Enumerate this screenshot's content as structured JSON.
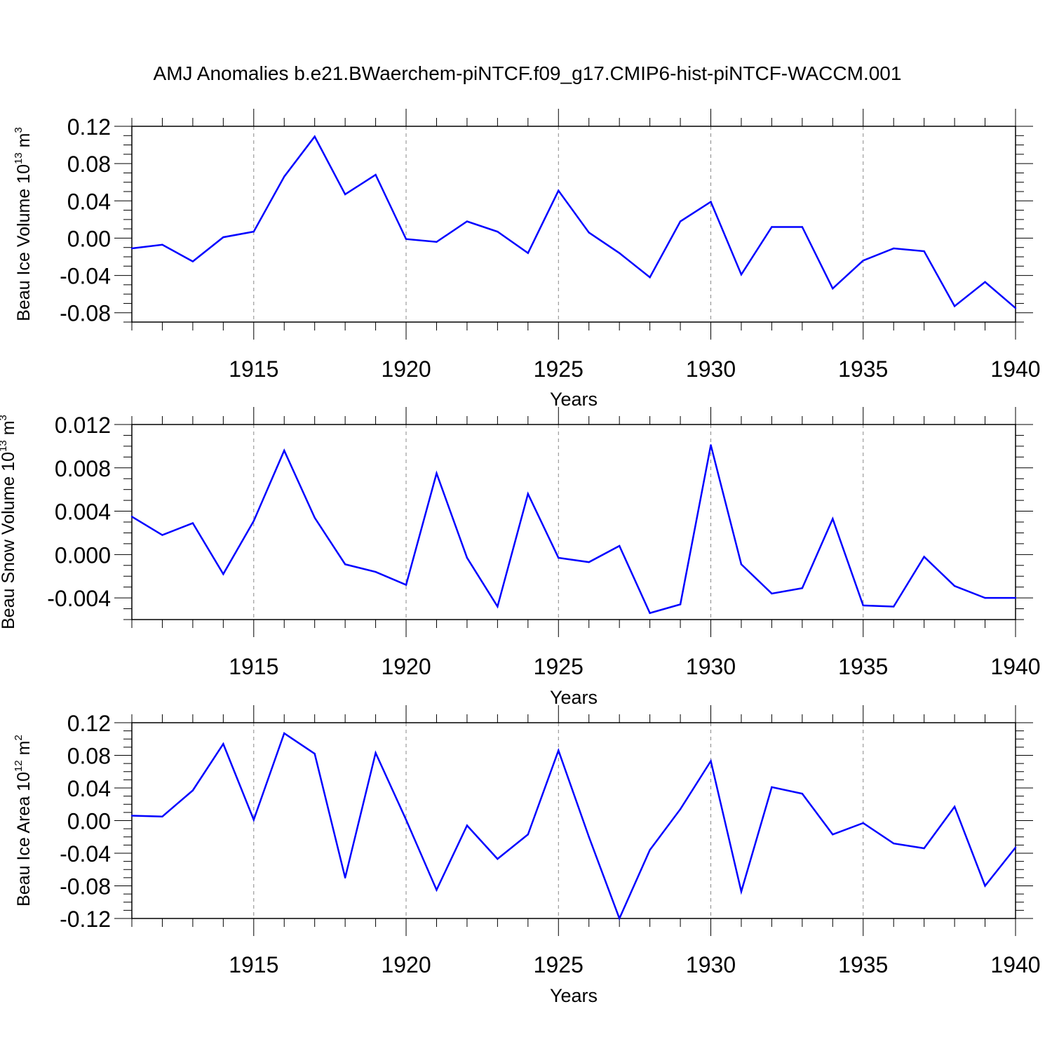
{
  "title": "AMJ Anomalies b.e21.BWaerchem-piNTCF.f09_g17.CMIP6-hist-piNTCF-WACCM.001",
  "colors": {
    "series": "#0000ff",
    "axis": "#000000",
    "grid": "#888888",
    "background": "#ffffff"
  },
  "chart_data": [
    {
      "type": "line",
      "ylabel_main": "Beau Ice Volume 10",
      "ylabel_exp": "13",
      "ylabel_unit": " m",
      "ylabel_unit_exp": "3",
      "xlabel": "Years",
      "xlim": [
        1911,
        1940
      ],
      "ylim": [
        -0.09,
        0.12
      ],
      "yticks": [
        -0.08,
        -0.04,
        0.0,
        0.04,
        0.08,
        0.12
      ],
      "ytick_labels": [
        "-0.08",
        "-0.04",
        "0.00",
        "0.04",
        "0.08",
        "0.12"
      ],
      "xticks": [
        1915,
        1920,
        1925,
        1930,
        1935,
        1940
      ],
      "xtick_labels": [
        "1915",
        "1920",
        "1925",
        "1930",
        "1935",
        "1940"
      ],
      "grid": "vertical dashed at major x ticks",
      "x": [
        1911,
        1912,
        1913,
        1914,
        1915,
        1916,
        1917,
        1918,
        1919,
        1920,
        1921,
        1922,
        1923,
        1924,
        1925,
        1926,
        1927,
        1928,
        1929,
        1930,
        1931,
        1932,
        1933,
        1934,
        1935,
        1936,
        1937,
        1938,
        1939,
        1940
      ],
      "values": [
        -0.011,
        -0.007,
        -0.025,
        0.001,
        0.007,
        0.066,
        0.109,
        0.047,
        0.068,
        -0.001,
        -0.004,
        0.018,
        0.007,
        -0.016,
        0.051,
        0.006,
        -0.016,
        -0.042,
        0.018,
        0.039,
        -0.039,
        0.012,
        0.012,
        -0.054,
        -0.024,
        -0.011,
        -0.014,
        -0.073,
        -0.047,
        -0.075
      ]
    },
    {
      "type": "line",
      "ylabel_main": "Beau Snow Volume 10",
      "ylabel_exp": "13",
      "ylabel_unit": " m",
      "ylabel_unit_exp": "3",
      "xlabel": "Years",
      "xlim": [
        1911,
        1940
      ],
      "ylim": [
        -0.006,
        0.012
      ],
      "yticks": [
        -0.004,
        0.0,
        0.004,
        0.008,
        0.012
      ],
      "ytick_labels": [
        "-0.004",
        "0.000",
        "0.004",
        "0.008",
        "0.012"
      ],
      "xticks": [
        1915,
        1920,
        1925,
        1930,
        1935,
        1940
      ],
      "xtick_labels": [
        "1915",
        "1920",
        "1925",
        "1930",
        "1935",
        "1940"
      ],
      "grid": "vertical dashed at major x ticks",
      "x": [
        1911,
        1912,
        1913,
        1914,
        1915,
        1916,
        1917,
        1918,
        1919,
        1920,
        1921,
        1922,
        1923,
        1924,
        1925,
        1926,
        1927,
        1928,
        1929,
        1930,
        1931,
        1932,
        1933,
        1934,
        1935,
        1936,
        1937,
        1938,
        1939,
        1940
      ],
      "values": [
        0.0035,
        0.0018,
        0.0029,
        -0.0018,
        0.0031,
        0.0096,
        0.0034,
        -0.0009,
        -0.0016,
        -0.0028,
        0.0075,
        -0.0003,
        -0.0048,
        0.0056,
        -0.0003,
        -0.0007,
        0.0008,
        -0.0054,
        -0.0046,
        0.0101,
        -0.0009,
        -0.0036,
        -0.0031,
        0.0033,
        -0.0047,
        -0.0048,
        -0.0002,
        -0.0029,
        -0.004,
        -0.004
      ]
    },
    {
      "type": "line",
      "ylabel_main": "Beau Ice Area 10",
      "ylabel_exp": "12",
      "ylabel_unit": " m",
      "ylabel_unit_exp": "2",
      "xlabel": "Years",
      "xlim": [
        1911,
        1940
      ],
      "ylim": [
        -0.12,
        0.12
      ],
      "yticks": [
        -0.12,
        -0.08,
        -0.04,
        0.0,
        0.04,
        0.08,
        0.12
      ],
      "ytick_labels": [
        "-0.12",
        "-0.08",
        "-0.04",
        "0.00",
        "0.04",
        "0.08",
        "0.12"
      ],
      "xticks": [
        1915,
        1920,
        1925,
        1930,
        1935,
        1940
      ],
      "xtick_labels": [
        "1915",
        "1920",
        "1925",
        "1930",
        "1935",
        "1940"
      ],
      "grid": "vertical dashed at major x ticks",
      "x": [
        1911,
        1912,
        1913,
        1914,
        1915,
        1916,
        1917,
        1918,
        1919,
        1920,
        1921,
        1922,
        1923,
        1924,
        1925,
        1926,
        1927,
        1928,
        1929,
        1930,
        1931,
        1932,
        1933,
        1934,
        1935,
        1936,
        1937,
        1938,
        1939,
        1940
      ],
      "values": [
        0.006,
        0.005,
        0.037,
        0.094,
        0.001,
        0.107,
        0.082,
        -0.07,
        0.083,
        0.001,
        -0.085,
        -0.006,
        -0.047,
        -0.017,
        0.086,
        -0.02,
        -0.12,
        -0.036,
        0.014,
        0.073,
        -0.087,
        0.041,
        0.033,
        -0.017,
        -0.003,
        -0.028,
        -0.034,
        0.017,
        -0.08,
        -0.033
      ]
    }
  ]
}
